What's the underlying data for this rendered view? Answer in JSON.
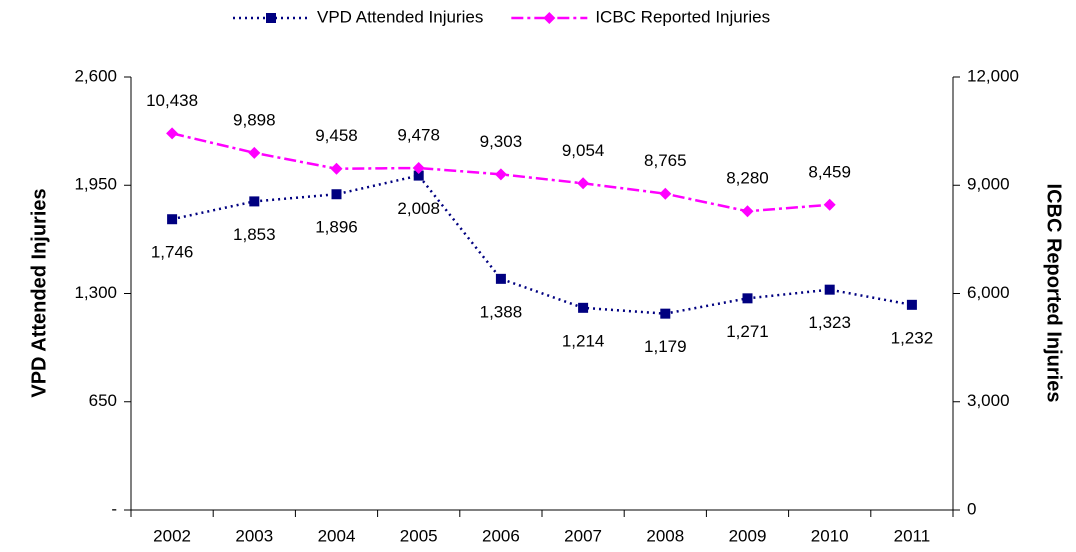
{
  "chart_data": {
    "type": "line",
    "categories": [
      "2002",
      "2003",
      "2004",
      "2005",
      "2006",
      "2007",
      "2008",
      "2009",
      "2010",
      "2011"
    ],
    "series": [
      {
        "name": "VPD Attended Injuries",
        "color": "#000080",
        "marker": "square",
        "axis": "y",
        "values": [
          1746,
          1853,
          1896,
          2008,
          1388,
          1214,
          1179,
          1271,
          1323,
          1232
        ],
        "value_labels": [
          "1,746",
          "1,853",
          "1,896",
          "2,008",
          "1,388",
          "1,214",
          "1,179",
          "1,271",
          "1,323",
          "1,232"
        ]
      },
      {
        "name": "ICBC Reported Injuries",
        "color": "#ff00ff",
        "marker": "diamond",
        "axis": "y2",
        "values": [
          10438,
          9898,
          9458,
          9478,
          9303,
          9054,
          8765,
          8280,
          8459,
          null
        ],
        "value_labels": [
          "10,438",
          "9,898",
          "9,458",
          "9,478",
          "9,303",
          "9,054",
          "8,765",
          "8,280",
          "8,459",
          null
        ]
      }
    ],
    "ylabel": "VPD Attended Injuries",
    "y2label": "ICBC Reported Injuries",
    "ylim": [
      0,
      2600
    ],
    "yticks": [
      {
        "value": 0,
        "label": "-"
      },
      650,
      {
        "value": 1300,
        "label": "1,300"
      },
      {
        "value": 1950,
        "label": "1,950"
      },
      {
        "value": 2600,
        "label": "2,600"
      }
    ],
    "y2lim": [
      0,
      12000
    ],
    "y2ticks": [
      0,
      {
        "value": 3000,
        "label": "3,000"
      },
      {
        "value": 6000,
        "label": "6,000"
      },
      {
        "value": 9000,
        "label": "9,000"
      },
      {
        "value": 12000,
        "label": "12,000"
      }
    ],
    "grid": false,
    "legend": "top"
  }
}
